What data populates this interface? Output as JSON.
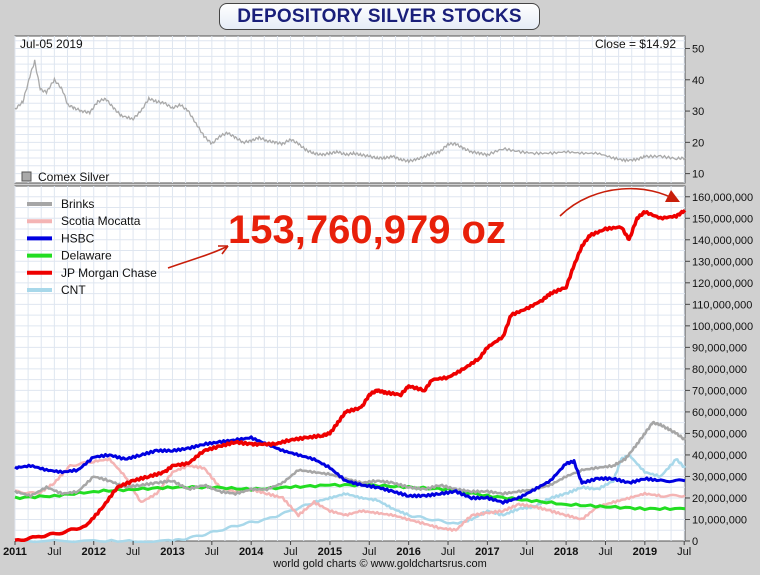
{
  "title": "DEPOSITORY SILVER STOCKS",
  "credit": "world gold charts © www.goldchartsrus.com",
  "chart_data": [
    {
      "type": "line",
      "date_label": "Jul-05  2019",
      "close_label": "Close = $14.92",
      "legend": "Comex Silver",
      "ylim": [
        7,
        54
      ],
      "yticks": [
        "10",
        "20",
        "30",
        "40",
        "50"
      ],
      "series": [
        {
          "name": "Comex Silver",
          "color": "#a9a9a9",
          "x": [
            2011.0,
            2011.1,
            2011.2,
            2011.25,
            2011.32,
            2011.4,
            2011.5,
            2011.6,
            2011.67,
            2011.75,
            2011.85,
            2011.95,
            2012.05,
            2012.15,
            2012.25,
            2012.35,
            2012.5,
            2012.6,
            2012.7,
            2012.8,
            2012.9,
            2013.0,
            2013.1,
            2013.2,
            2013.3,
            2013.4,
            2013.5,
            2013.6,
            2013.7,
            2013.8,
            2013.9,
            2014.0,
            2014.1,
            2014.2,
            2014.3,
            2014.4,
            2014.5,
            2014.6,
            2014.7,
            2014.8,
            2014.9,
            2015.0,
            2015.1,
            2015.2,
            2015.3,
            2015.4,
            2015.5,
            2015.6,
            2015.7,
            2015.8,
            2015.9,
            2016.0,
            2016.1,
            2016.2,
            2016.3,
            2016.4,
            2016.5,
            2016.6,
            2016.7,
            2016.8,
            2016.9,
            2017.0,
            2017.2,
            2017.4,
            2017.6,
            2017.8,
            2018.0,
            2018.2,
            2018.4,
            2018.6,
            2018.75,
            2018.9,
            2019.0,
            2019.2,
            2019.4,
            2019.51
          ],
          "values": [
            30.6,
            33,
            42,
            46,
            37,
            36,
            40,
            37,
            32,
            31,
            30,
            29.5,
            33,
            34,
            31,
            28.5,
            27.5,
            30,
            34,
            33,
            32.5,
            31,
            32,
            30,
            26,
            22,
            19.5,
            22,
            23,
            21.5,
            20,
            20.5,
            21.5,
            20.5,
            20,
            19.5,
            21,
            19.5,
            17.5,
            16.5,
            16,
            16.5,
            17,
            16,
            16.5,
            16,
            15.5,
            15,
            15,
            15.5,
            14.5,
            14,
            14.5,
            15.5,
            16.5,
            17,
            19.5,
            19.5,
            18,
            17,
            16.5,
            16,
            18,
            17,
            16.5,
            16.5,
            17,
            16.5,
            16.5,
            15,
            14.2,
            14.5,
            15.5,
            15.5,
            14.8,
            15
          ]
        }
      ]
    },
    {
      "type": "line",
      "ylim": [
        0,
        165000000
      ],
      "yticks": [
        "0",
        "10,000,000",
        "20,000,000",
        "30,000,000",
        "40,000,000",
        "50,000,000",
        "60,000,000",
        "70,000,000",
        "80,000,000",
        "90,000,000",
        "100,000,000",
        "110,000,000",
        "120,000,000",
        "130,000,000",
        "140,000,000",
        "150,000,000",
        "160,000,000"
      ],
      "xticks": [
        "2011",
        "Jul",
        "2012",
        "Jul",
        "2013",
        "Jul",
        "2014",
        "Jul",
        "2015",
        "Jul",
        "2016",
        "Jul",
        "2017",
        "Jul",
        "2018",
        "Jul",
        "2019",
        "Jul"
      ],
      "annotation": "153,760,979 oz",
      "series": [
        {
          "name": "Brinks",
          "color": "#a6a6a6",
          "x": [
            2011.0,
            2011.2,
            2011.4,
            2011.6,
            2011.8,
            2012.0,
            2012.2,
            2012.4,
            2012.6,
            2012.8,
            2013.0,
            2013.2,
            2013.4,
            2013.6,
            2013.8,
            2014.0,
            2014.2,
            2014.4,
            2014.6,
            2014.8,
            2015.0,
            2015.2,
            2015.4,
            2015.6,
            2015.8,
            2016.0,
            2016.2,
            2016.4,
            2016.6,
            2016.8,
            2017.0,
            2017.2,
            2017.4,
            2017.6,
            2017.8,
            2018.0,
            2018.2,
            2018.4,
            2018.6,
            2018.75,
            2018.9,
            2019.0,
            2019.1,
            2019.2,
            2019.3,
            2019.4,
            2019.51
          ],
          "values": [
            23000000,
            21000000,
            25000000,
            22000000,
            23000000,
            30000000,
            28000000,
            25000000,
            26000000,
            27000000,
            28000000,
            24000000,
            26000000,
            23000000,
            22000000,
            24000000,
            24000000,
            27000000,
            33000000,
            32000000,
            31000000,
            29000000,
            27000000,
            28000000,
            27000000,
            25000000,
            24000000,
            26000000,
            24000000,
            23000000,
            23000000,
            22000000,
            23000000,
            24000000,
            26000000,
            30000000,
            33000000,
            34000000,
            35000000,
            38000000,
            45000000,
            50000000,
            55000000,
            54000000,
            52000000,
            50000000,
            47000000
          ]
        },
        {
          "name": "Scotia Mocatta",
          "color": "#f4b4b4",
          "x": [
            2011.0,
            2011.3,
            2011.5,
            2011.7,
            2012.0,
            2012.2,
            2012.4,
            2012.6,
            2012.8,
            2013.0,
            2013.2,
            2013.4,
            2013.6,
            2013.8,
            2014.0,
            2014.2,
            2014.4,
            2014.6,
            2014.8,
            2015.0,
            2015.2,
            2015.4,
            2015.6,
            2015.8,
            2016.0,
            2016.2,
            2016.4,
            2016.6,
            2016.8,
            2017.0,
            2017.2,
            2017.4,
            2017.6,
            2017.8,
            2018.0,
            2018.2,
            2018.4,
            2018.6,
            2018.8,
            2019.0,
            2019.2,
            2019.51
          ],
          "values": [
            23000000,
            22000000,
            27000000,
            35000000,
            37000000,
            38000000,
            30000000,
            18000000,
            22000000,
            32000000,
            35000000,
            34000000,
            25000000,
            23000000,
            24000000,
            22000000,
            20000000,
            12000000,
            18000000,
            14000000,
            12000000,
            14000000,
            13000000,
            12000000,
            10000000,
            8000000,
            6000000,
            5000000,
            12000000,
            13000000,
            14000000,
            17000000,
            16000000,
            14000000,
            12000000,
            10000000,
            16000000,
            18000000,
            20000000,
            22000000,
            21000000,
            21000000
          ]
        },
        {
          "name": "HSBC",
          "color": "#0000e0",
          "x": [
            2011.0,
            2011.2,
            2011.4,
            2011.6,
            2011.8,
            2012.0,
            2012.2,
            2012.4,
            2012.6,
            2012.8,
            2013.0,
            2013.2,
            2013.4,
            2013.6,
            2013.8,
            2014.0,
            2014.2,
            2014.4,
            2014.6,
            2014.8,
            2015.0,
            2015.2,
            2015.4,
            2015.6,
            2015.8,
            2016.0,
            2016.2,
            2016.4,
            2016.6,
            2016.8,
            2017.0,
            2017.2,
            2017.4,
            2017.6,
            2017.8,
            2018.0,
            2018.1,
            2018.2,
            2018.4,
            2018.6,
            2018.8,
            2019.0,
            2019.2,
            2019.51
          ],
          "values": [
            34000000,
            35000000,
            33000000,
            32000000,
            33000000,
            39000000,
            40000000,
            38000000,
            40000000,
            42000000,
            42000000,
            43000000,
            45000000,
            46000000,
            47000000,
            48000000,
            45000000,
            42000000,
            40000000,
            38000000,
            34000000,
            28000000,
            26000000,
            25000000,
            23000000,
            21000000,
            21000000,
            22000000,
            23000000,
            20000000,
            20000000,
            18000000,
            20000000,
            24000000,
            28000000,
            36000000,
            37000000,
            27000000,
            29000000,
            29000000,
            27000000,
            29000000,
            28000000,
            28000000
          ]
        },
        {
          "name": "Delaware",
          "color": "#22dd22",
          "x": [
            2011.0,
            2011.5,
            2012.0,
            2012.5,
            2013.0,
            2013.5,
            2014.0,
            2014.5,
            2015.0,
            2015.5,
            2016.0,
            2016.5,
            2017.0,
            2017.5,
            2018.0,
            2018.5,
            2019.0,
            2019.51
          ],
          "values": [
            20000000,
            21000000,
            23000000,
            24000000,
            25000000,
            25000000,
            24000000,
            25000000,
            26000000,
            26000000,
            25000000,
            24000000,
            21000000,
            19000000,
            17000000,
            16000000,
            15000000,
            15000000
          ]
        },
        {
          "name": "JP Morgan Chase",
          "color": "#ee0000",
          "x": [
            2011.0,
            2011.3,
            2011.6,
            2011.9,
            2012.1,
            2012.3,
            2012.5,
            2012.7,
            2012.9,
            2013.0,
            2013.2,
            2013.4,
            2013.6,
            2013.8,
            2014.0,
            2014.1,
            2014.3,
            2014.5,
            2014.7,
            2014.9,
            2015.0,
            2015.1,
            2015.2,
            2015.4,
            2015.5,
            2015.6,
            2015.7,
            2015.9,
            2016.0,
            2016.2,
            2016.3,
            2016.5,
            2016.7,
            2016.9,
            2017.0,
            2017.2,
            2017.3,
            2017.5,
            2017.7,
            2017.8,
            2018.0,
            2018.1,
            2018.2,
            2018.3,
            2018.5,
            2018.7,
            2018.8,
            2018.9,
            2019.0,
            2019.2,
            2019.4,
            2019.51
          ],
          "values": [
            0,
            2000000,
            4000000,
            7000000,
            15000000,
            25000000,
            28000000,
            30000000,
            32000000,
            35000000,
            36000000,
            42000000,
            44000000,
            46000000,
            45000000,
            45000000,
            45000000,
            47000000,
            48000000,
            49000000,
            50000000,
            55000000,
            60000000,
            62000000,
            68000000,
            70000000,
            69000000,
            68000000,
            72000000,
            70000000,
            75000000,
            76000000,
            80000000,
            85000000,
            90000000,
            95000000,
            105000000,
            108000000,
            112000000,
            115000000,
            118000000,
            128000000,
            137000000,
            142000000,
            145000000,
            146000000,
            140000000,
            150000000,
            153000000,
            150000000,
            151000000,
            153760979
          ]
        },
        {
          "name": "CNT",
          "color": "#a8d8ea",
          "x": [
            2011.0,
            2012.0,
            2012.6,
            2013.0,
            2013.3,
            2013.6,
            2013.9,
            2014.2,
            2014.5,
            2014.8,
            2015.0,
            2015.2,
            2015.4,
            2015.6,
            2015.8,
            2016.0,
            2016.3,
            2016.6,
            2016.8,
            2017.0,
            2017.2,
            2017.4,
            2017.6,
            2017.8,
            2018.0,
            2018.2,
            2018.4,
            2018.6,
            2018.7,
            2018.8,
            2019.0,
            2019.2,
            2019.4,
            2019.51
          ],
          "values": [
            0,
            0,
            0,
            0,
            2000000,
            5000000,
            8000000,
            10000000,
            14000000,
            18000000,
            20000000,
            22000000,
            20000000,
            19000000,
            15000000,
            12000000,
            10000000,
            8000000,
            10000000,
            14000000,
            12000000,
            15000000,
            16000000,
            20000000,
            22000000,
            25000000,
            24000000,
            28000000,
            38000000,
            40000000,
            32000000,
            30000000,
            38000000,
            34000000
          ]
        }
      ]
    }
  ]
}
